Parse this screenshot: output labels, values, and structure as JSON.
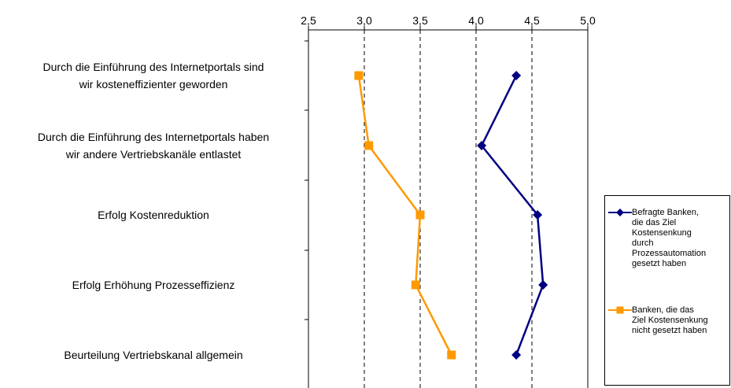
{
  "chart_data": {
    "type": "line",
    "orientation": "horizontal",
    "x_axis_position": "top",
    "xlim": [
      2.5,
      5.0
    ],
    "x_ticks": [
      "2,5",
      "3,0",
      "3,5",
      "4,0",
      "4,5",
      "5,0"
    ],
    "x_tick_values": [
      2.5,
      3.0,
      3.5,
      4.0,
      4.5,
      5.0
    ],
    "grid": "vertical dashed",
    "legend_position": "right",
    "categories": [
      "Durch die Einführung des Internetportals sind wir kosteneffizienter geworden",
      "Durch die Einführung des Internetportals haben wir andere Vertriebskanäle entlastet",
      "Erfolg Kostenreduktion",
      "Erfolg Erhöhung Prozesseffizienz",
      "Beurteilung Vertriebskanal allgemein"
    ],
    "category_lines": [
      [
        "Durch die Einführung des Internetportals sind",
        "wir kosteneffizienter geworden"
      ],
      [
        "Durch die Einführung des Internetportals haben",
        "wir andere Vertriebskanäle entlastet"
      ],
      [
        "Erfolg Kostenreduktion"
      ],
      [
        "Erfolg Erhöhung Prozesseffizienz"
      ],
      [
        "Beurteilung Vertriebskanal allgemein"
      ]
    ],
    "series": [
      {
        "name": "Befragte Banken, die das Ziel Kostensenkung durch Prozessautomation gesetzt haben",
        "legend_lines": [
          "Befragte Banken,",
          "die das Ziel",
          "Kostensenkung",
          "durch",
          "Prozessautomation",
          "gesetzt haben"
        ],
        "color": "#000080",
        "marker": "diamond",
        "values": [
          4.36,
          4.05,
          4.55,
          4.6,
          4.36
        ]
      },
      {
        "name": "Banken, die das Ziel Kostensenkung nicht gesetzt haben",
        "legend_lines": [
          "Banken, die das",
          "Ziel Kostensenkung",
          "nicht gesetzt haben"
        ],
        "color": "#FF9900",
        "marker": "square",
        "values": [
          2.95,
          3.04,
          3.5,
          3.46,
          3.78
        ]
      }
    ]
  }
}
